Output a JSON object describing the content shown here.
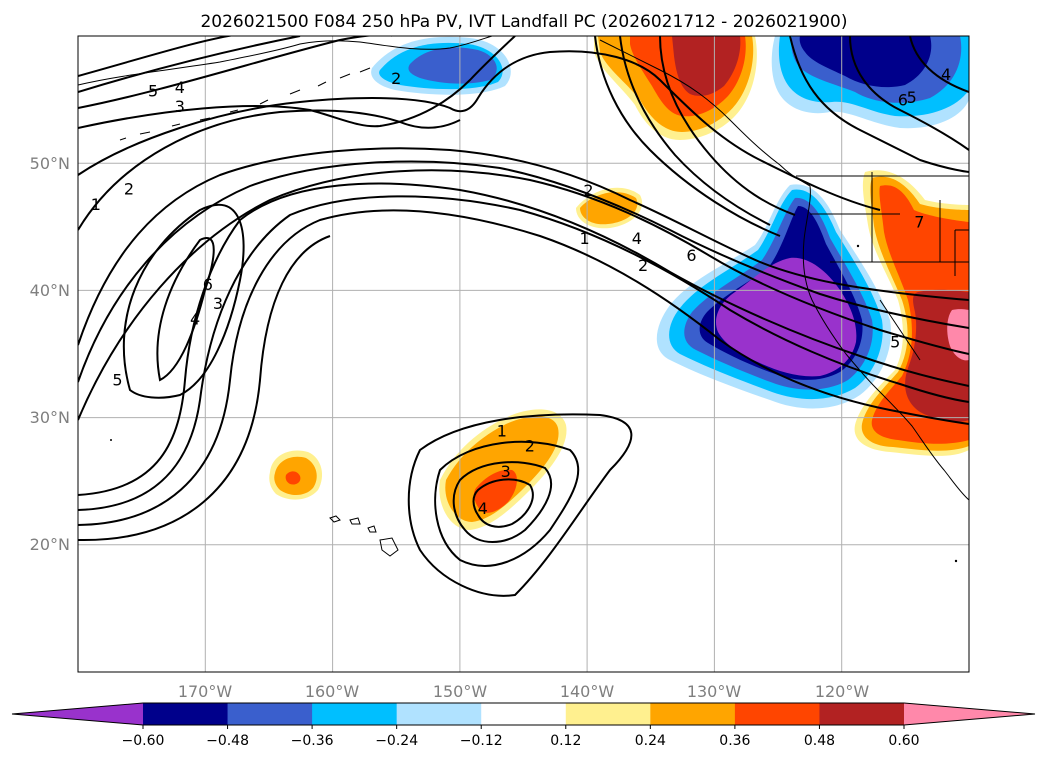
{
  "title": "2026021500 F084 250 hPa PV, IVT Landfall PC (2026021712 - 2026021900)",
  "map": {
    "projection": "PlateCarree",
    "lon_range": [
      -180,
      -110
    ],
    "lat_range": [
      10,
      60
    ],
    "lon_ticks": [
      {
        "lon": -170,
        "label": "170°W"
      },
      {
        "lon": -160,
        "label": "160°W"
      },
      {
        "lon": -150,
        "label": "150°W"
      },
      {
        "lon": -140,
        "label": "140°W"
      },
      {
        "lon": -130,
        "label": "130°W"
      },
      {
        "lon": -120,
        "label": "120°W"
      }
    ],
    "lat_ticks": [
      {
        "lat": 20,
        "label": "20°N"
      },
      {
        "lat": 30,
        "label": "30°N"
      },
      {
        "lat": 40,
        "label": "40°N"
      },
      {
        "lat": 50,
        "label": "50°N"
      }
    ]
  },
  "colorbar": {
    "levels": [
      -0.6,
      -0.48,
      -0.36,
      -0.24,
      -0.12,
      0.12,
      0.24,
      0.36,
      0.48,
      0.6
    ],
    "tick_labels": [
      "−0.60",
      "−0.48",
      "−0.36",
      "−0.24",
      "−0.12",
      "0.12",
      "0.24",
      "0.36",
      "0.48",
      "0.60"
    ],
    "colors": [
      "#9932cc",
      "#00008b",
      "#3a5fcd",
      "#00bfff",
      "#b0e2ff",
      "#ffffff",
      "#fff08f",
      "#ffa500",
      "#ff4500",
      "#b22222",
      "#ff88aa"
    ],
    "extend": "both"
  },
  "contour_labels": [
    {
      "text": "5",
      "lon": -174.1,
      "lat": 55.7
    },
    {
      "text": "4",
      "lon": -172.0,
      "lat": 56.0
    },
    {
      "text": "3",
      "lon": -172.0,
      "lat": 54.5
    },
    {
      "text": "2",
      "lon": -176.0,
      "lat": 48.0
    },
    {
      "text": "1",
      "lon": -178.6,
      "lat": 46.8
    },
    {
      "text": "6",
      "lon": -169.8,
      "lat": 40.5
    },
    {
      "text": "4",
      "lon": -170.8,
      "lat": 37.8
    },
    {
      "text": "3",
      "lon": -169.0,
      "lat": 39.0
    },
    {
      "text": "5",
      "lon": -176.9,
      "lat": 33.0
    },
    {
      "text": "2",
      "lon": -155.0,
      "lat": 56.7
    },
    {
      "text": "1",
      "lon": -140.2,
      "lat": 44.1
    },
    {
      "text": "2",
      "lon": -139.9,
      "lat": 47.9
    },
    {
      "text": "4",
      "lon": -136.1,
      "lat": 44.1
    },
    {
      "text": "2",
      "lon": -135.6,
      "lat": 42.0
    },
    {
      "text": "6",
      "lon": -131.8,
      "lat": 42.8
    },
    {
      "text": "6",
      "lon": -115.2,
      "lat": 55.0
    },
    {
      "text": "5",
      "lon": -114.5,
      "lat": 55.2
    },
    {
      "text": "4",
      "lon": -111.8,
      "lat": 57.0
    },
    {
      "text": "1",
      "lon": -146.7,
      "lat": 29.0
    },
    {
      "text": "2",
      "lon": -144.5,
      "lat": 27.8
    },
    {
      "text": "3",
      "lon": -146.4,
      "lat": 25.8
    },
    {
      "text": "4",
      "lon": -148.2,
      "lat": 22.9
    },
    {
      "text": "5",
      "lon": -115.8,
      "lat": 36.0
    },
    {
      "text": "7",
      "lon": -113.9,
      "lat": 45.4
    }
  ]
}
